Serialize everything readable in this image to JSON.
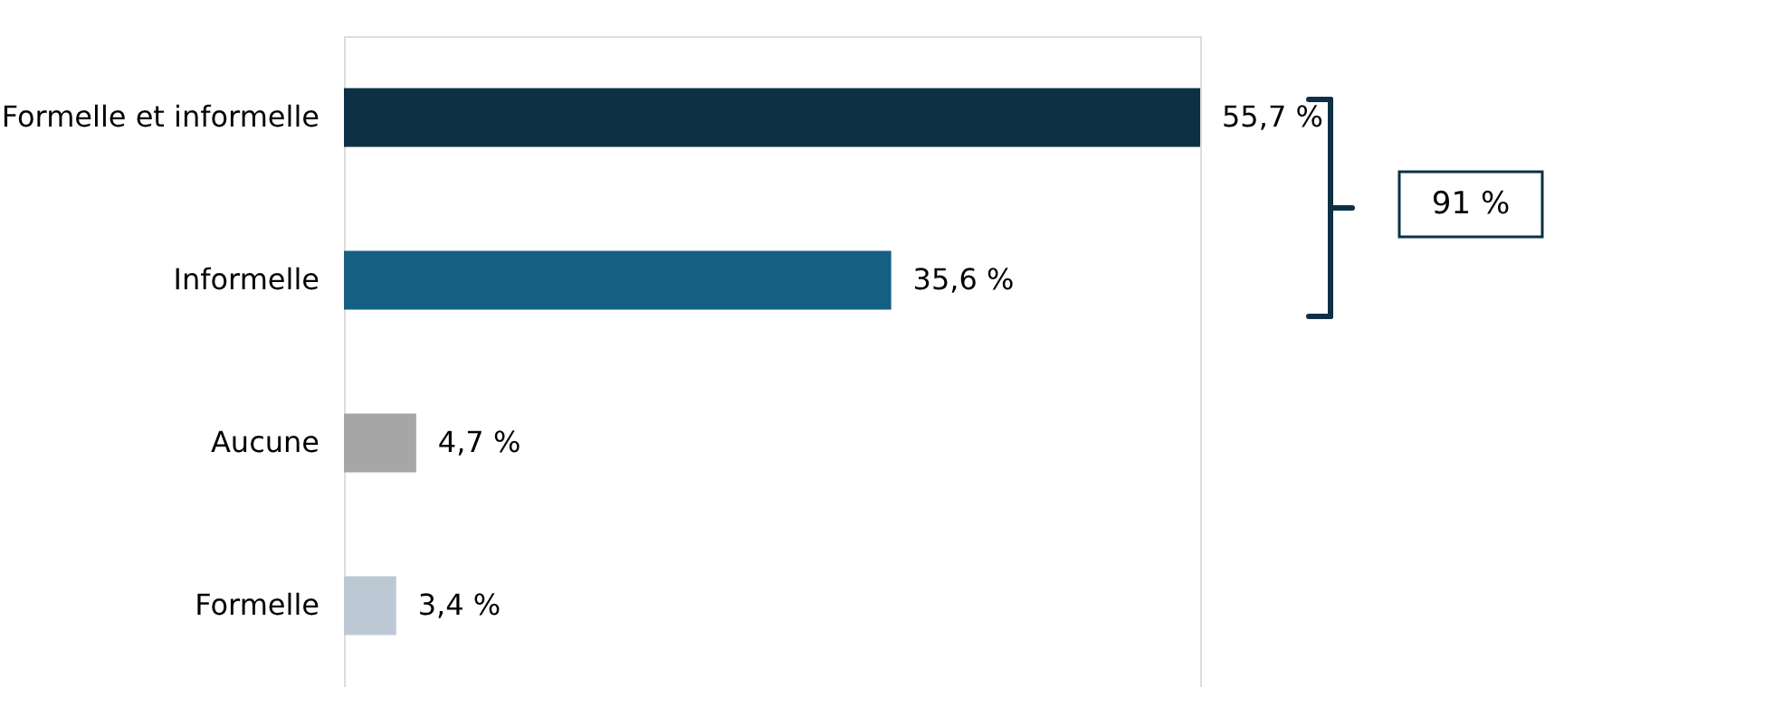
{
  "chart_data": {
    "type": "bar",
    "orientation": "horizontal",
    "categories": [
      "Formelle et informelle",
      "Informelle",
      "Aucune",
      "Formelle"
    ],
    "values": [
      55.7,
      35.6,
      4.7,
      3.4
    ],
    "colors": [
      "#0d3045",
      "#155f82",
      "#a6a6a6",
      "#bcc8d4"
    ],
    "value_labels": [
      "55,7 %",
      "35,6 %",
      "4,7 %",
      "3,4 %"
    ],
    "annotations": [
      "91 %"
    ],
    "grid": false
  }
}
